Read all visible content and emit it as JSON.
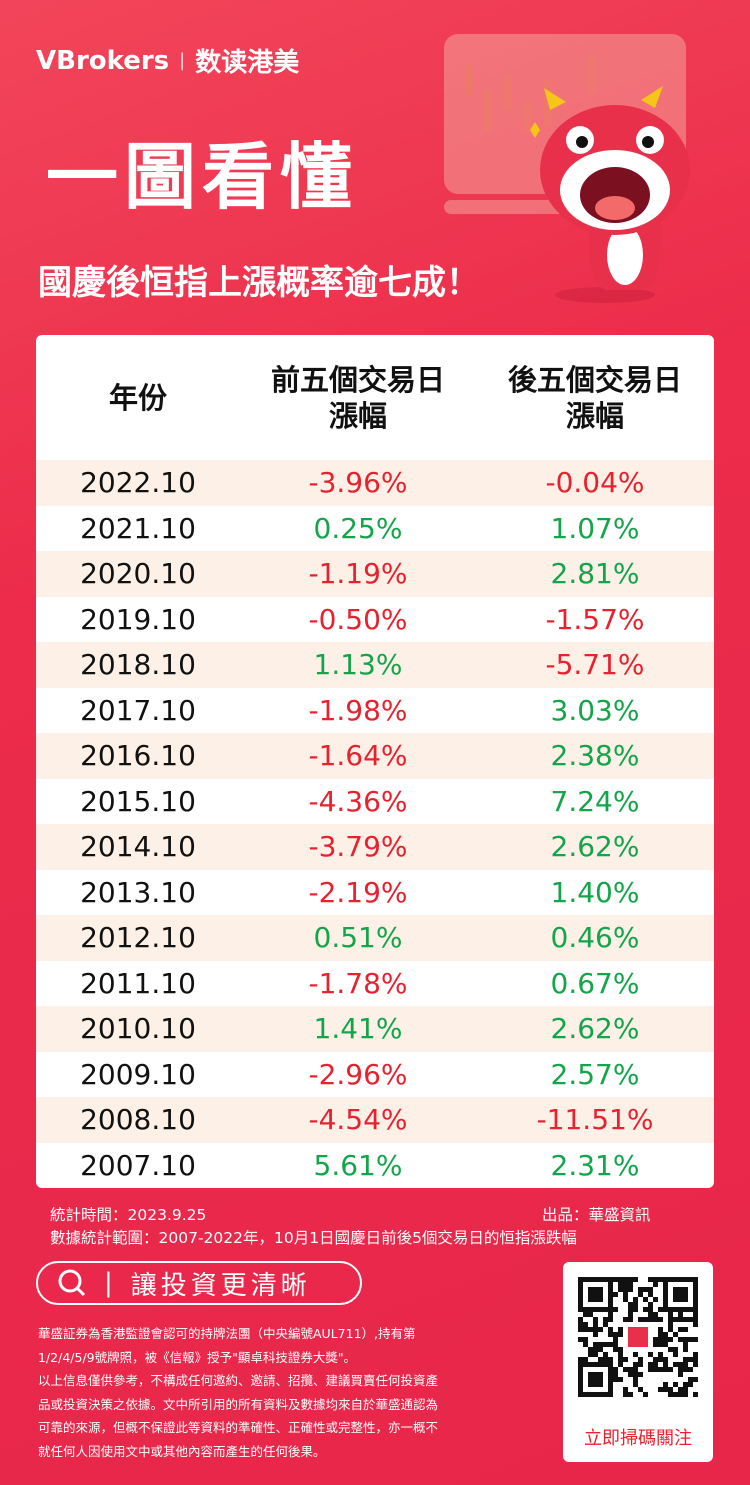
{
  "header": {
    "brand": "VBrokers",
    "brand_sub": "数读港美",
    "title": "一圖看懂",
    "subtitle": "國慶後恒指上漲概率逾七成！"
  },
  "table": {
    "columns": [
      [
        "年份"
      ],
      [
        "前五個交易日",
        "漲幅"
      ],
      [
        "後五個交易日",
        "漲幅"
      ]
    ],
    "rows": [
      [
        "2022.10",
        "-3.96%",
        "-0.04%"
      ],
      [
        "2021.10",
        "0.25%",
        "1.07%"
      ],
      [
        "2020.10",
        "-1.19%",
        "2.81%"
      ],
      [
        "2019.10",
        "-0.50%",
        "-1.57%"
      ],
      [
        "2018.10",
        "1.13%",
        "-5.71%"
      ],
      [
        "2017.10",
        "-1.98%",
        "3.03%"
      ],
      [
        "2016.10",
        "-1.64%",
        "2.38%"
      ],
      [
        "2015.10",
        "-4.36%",
        "7.24%"
      ],
      [
        "2014.10",
        "-3.79%",
        "2.62%"
      ],
      [
        "2013.10",
        "-2.19%",
        "1.40%"
      ],
      [
        "2012.10",
        "0.51%",
        "0.46%"
      ],
      [
        "2011.10",
        "-1.78%",
        "0.67%"
      ],
      [
        "2010.10",
        "1.41%",
        "2.62%"
      ],
      [
        "2009.10",
        "-2.96%",
        "2.57%"
      ],
      [
        "2008.10",
        "-4.54%",
        "-11.51%"
      ],
      [
        "2007.10",
        "5.61%",
        "2.31%"
      ]
    ]
  },
  "footer": {
    "stat_time": "統計時間：2023.9.25",
    "producer": "出品：華盛資訊",
    "scope": "數據統計範圍：2007-2022年，10月1日國慶日前後5個交易日的恒指漲跌幅",
    "search": "讓投資更清晰",
    "disclaimer": [
      "華盛証券為香港監證會認可的持牌法團（中央編號AUL711）,持有第",
      "1/2/4/5/9號牌照，被《信報》授予\"顯卓科技證券大獎\"。",
      "以上信息僅供參考，不構成任何邀約、邀請、招攬、建議買賣任何投資產",
      "品或投資決策之依據。文中所引用的所有資料及數據均來自於華盛通認為",
      "可靠的來源，但概不保證此等資料的準確性、正確性或完整性，亦一概不",
      "就任何人因使用文中或其他內容而產生的任何後果。"
    ],
    "qr_caption": "立即掃碼關注"
  }
}
